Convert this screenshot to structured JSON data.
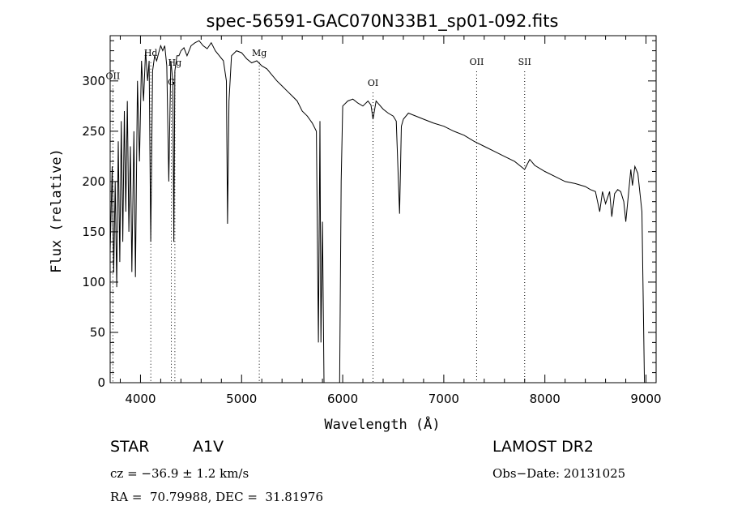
{
  "chart_data": {
    "type": "line",
    "title": "spec-56591-GAC070N33B1_sp01-092.fits",
    "xlabel": "Wavelength (Å)",
    "ylabel": "Flux (relative)",
    "xlim": [
      3700,
      9100
    ],
    "ylim": [
      0,
      345
    ],
    "xticks": [
      4000,
      5000,
      6000,
      7000,
      8000,
      9000
    ],
    "yticks": [
      0,
      50,
      100,
      150,
      200,
      250,
      300
    ],
    "grid": false,
    "line_color": "#000000",
    "series": [
      {
        "x": [
          3700,
          3720,
          3735,
          3750,
          3765,
          3780,
          3795,
          3810,
          3825,
          3840,
          3855,
          3870,
          3885,
          3900,
          3915,
          3935,
          3950,
          3970,
          3990,
          4010,
          4030,
          4050,
          4070,
          4085,
          4101,
          4120,
          4140,
          4160,
          4180,
          4200,
          4220,
          4240,
          4260,
          4280,
          4300,
          4320,
          4330,
          4340,
          4360,
          4380,
          4400,
          4430,
          4460,
          4500,
          4540,
          4580,
          4620,
          4660,
          4700,
          4740,
          4780,
          4820,
          4850,
          4861,
          4875,
          4900,
          4950,
          5000,
          5050,
          5100,
          5150,
          5200,
          5250,
          5300,
          5350,
          5400,
          5450,
          5500,
          5550,
          5600,
          5650,
          5700,
          5740,
          5760,
          5775,
          5785,
          5800,
          5815,
          5830,
          5860,
          5900,
          5950,
          5970,
          5985,
          6000,
          6050,
          6100,
          6150,
          6200,
          6250,
          6280,
          6300,
          6330,
          6400,
          6450,
          6500,
          6530,
          6563,
          6580,
          6600,
          6650,
          6700,
          6750,
          6800,
          6900,
          7000,
          7100,
          7200,
          7300,
          7400,
          7500,
          7600,
          7700,
          7800,
          7850,
          7900,
          8000,
          8100,
          8200,
          8300,
          8400,
          8450,
          8500,
          8542,
          8570,
          8600,
          8640,
          8662,
          8690,
          8720,
          8750,
          8780,
          8800,
          8850,
          8866,
          8890,
          8920,
          8960,
          8985,
          9000,
          9010
        ],
        "y": [
          130,
          215,
          110,
          200,
          95,
          240,
          120,
          260,
          140,
          270,
          170,
          280,
          150,
          235,
          110,
          250,
          105,
          300,
          220,
          320,
          280,
          330,
          300,
          320,
          140,
          310,
          325,
          320,
          328,
          335,
          330,
          335,
          315,
          200,
          320,
          300,
          140,
          310,
          325,
          325,
          330,
          333,
          325,
          335,
          338,
          340,
          335,
          332,
          338,
          330,
          325,
          320,
          300,
          158,
          280,
          325,
          330,
          328,
          322,
          318,
          320,
          315,
          312,
          306,
          300,
          295,
          290,
          285,
          280,
          270,
          265,
          258,
          250,
          40,
          260,
          40,
          160,
          0,
          0,
          0,
          0,
          0,
          0,
          200,
          275,
          280,
          282,
          278,
          275,
          280,
          276,
          262,
          280,
          272,
          268,
          265,
          260,
          168,
          255,
          262,
          268,
          266,
          264,
          262,
          258,
          255,
          250,
          246,
          240,
          235,
          230,
          225,
          220,
          212,
          222,
          216,
          210,
          205,
          200,
          198,
          195,
          192,
          190,
          170,
          190,
          178,
          190,
          165,
          188,
          192,
          190,
          180,
          160,
          212,
          196,
          215,
          208,
          170,
          0,
          0,
          0
        ]
      }
    ],
    "line_markers": [
      {
        "label": "OII",
        "x": 3727,
        "y": 302
      },
      {
        "label": "Hd",
        "x": 4102,
        "y": 325
      },
      {
        "label": "G",
        "x": 4305,
        "y": 296
      },
      {
        "label": "Hg",
        "x": 4340,
        "y": 315
      },
      {
        "label": "Mg",
        "x": 5175,
        "y": 325
      },
      {
        "label": "OI",
        "x": 6300,
        "y": 295
      },
      {
        "label": "OII",
        "x": 7325,
        "y": 316
      },
      {
        "label": "SII",
        "x": 7800,
        "y": 316
      }
    ]
  },
  "info": {
    "object_class": "STAR",
    "subclass": "A1V",
    "survey": "LAMOST DR2",
    "cz": "cz = −36.9 ± 1.2 km/s",
    "obs_date": "Obs−Date: 20131025",
    "coords": "RA =  70.79988, DEC =  31.81976"
  }
}
